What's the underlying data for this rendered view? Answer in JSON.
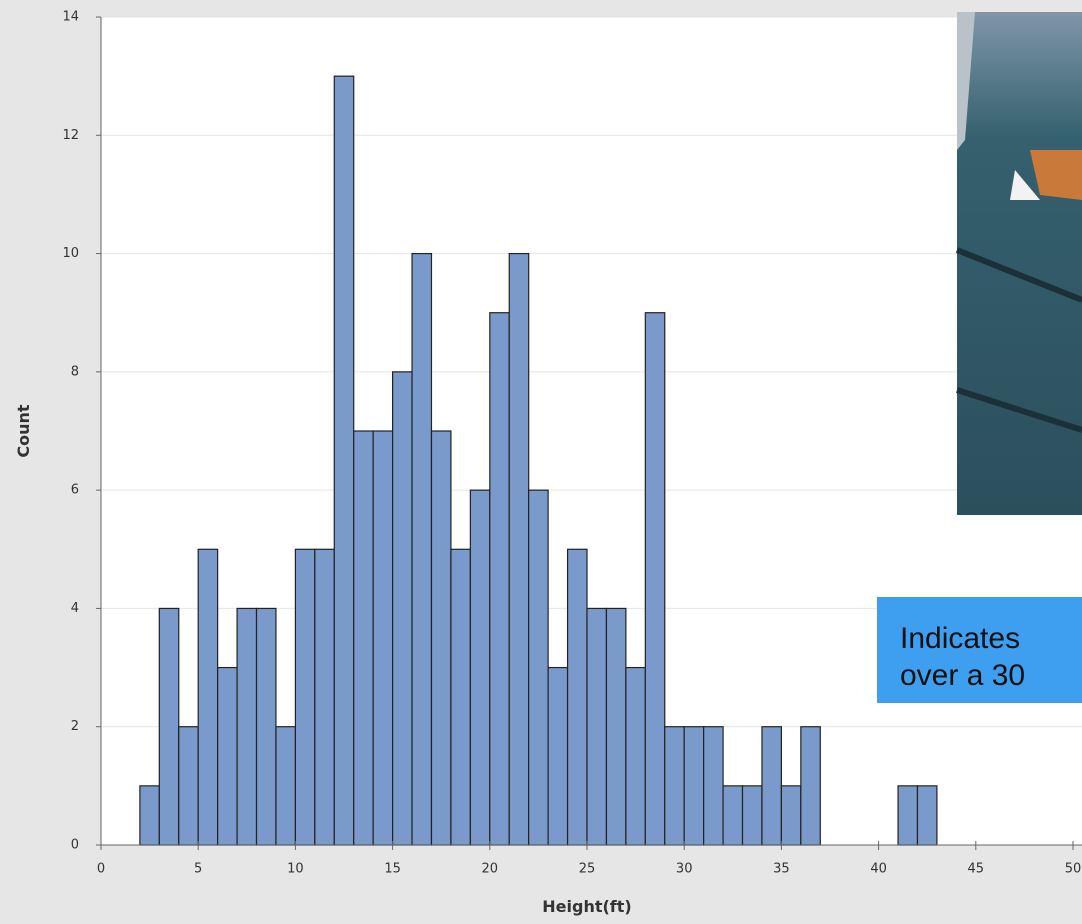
{
  "chart_data": {
    "type": "histogram",
    "xlabel": "Height(ft)",
    "ylabel": "Count",
    "bins": [
      2,
      3,
      4,
      5,
      6,
      7,
      8,
      9,
      10,
      11,
      12,
      13,
      14,
      15,
      16,
      17,
      18,
      19,
      20,
      21,
      22,
      23,
      24,
      25,
      26,
      27,
      28,
      29,
      30,
      31,
      32,
      33,
      34,
      35,
      36,
      37,
      38,
      39,
      40,
      41,
      42,
      43
    ],
    "values": [
      1,
      4,
      2,
      5,
      3,
      4,
      4,
      2,
      5,
      5,
      13,
      7,
      7,
      8,
      10,
      7,
      5,
      6,
      9,
      10,
      6,
      3,
      5,
      4,
      4,
      3,
      9,
      2,
      2,
      2,
      1,
      1,
      2,
      1,
      2,
      0,
      0,
      0,
      0,
      1,
      1
    ],
    "color": "#7b9acc",
    "xlim": [
      0,
      50
    ],
    "xticks": [
      0,
      5,
      10,
      15,
      20,
      25,
      30,
      35,
      40,
      45,
      50
    ],
    "ylim": [
      0,
      14
    ],
    "yticks": [
      0,
      2,
      4,
      6,
      8,
      10,
      12,
      14
    ],
    "grid": true,
    "annotation": [
      "Indicates",
      "over a 30"
    ]
  }
}
